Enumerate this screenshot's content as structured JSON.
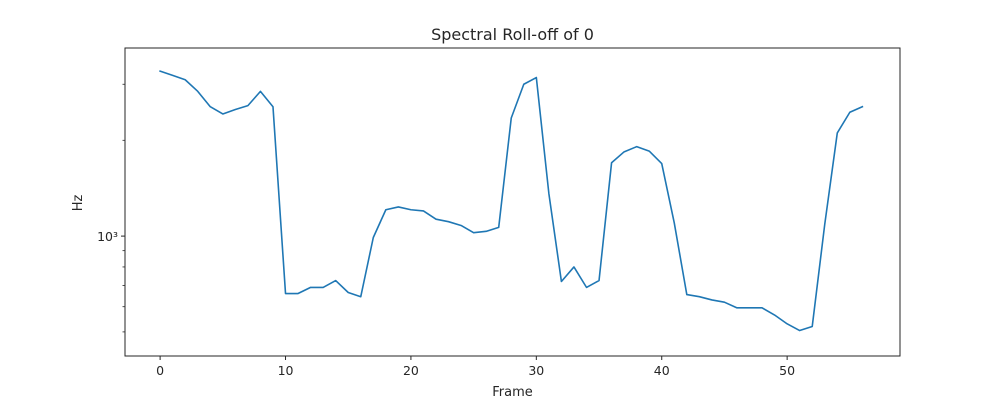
{
  "chart_data": {
    "type": "line",
    "title": "Spectral Roll-off of 0",
    "xlabel": "Frame",
    "ylabel": "Hz",
    "xlim": [
      -2.8,
      59
    ],
    "ylim": [
      420,
      3900
    ],
    "yscale": "log",
    "x_ticks": [
      0,
      10,
      20,
      30,
      40,
      50
    ],
    "x_tick_labels": [
      "0",
      "10",
      "20",
      "30",
      "40",
      "50"
    ],
    "y_major_ticks": [
      1000
    ],
    "y_major_tick_labels": [
      "10³"
    ],
    "y_minor_ticks": [
      500,
      600,
      700,
      800,
      900,
      2000,
      3000
    ],
    "grid": false,
    "series": [
      {
        "color": "#1f77b4",
        "x": [
          0,
          1,
          2,
          3,
          4,
          5,
          6,
          7,
          8,
          9,
          10,
          11,
          12,
          13,
          14,
          15,
          16,
          17,
          18,
          19,
          20,
          21,
          22,
          23,
          24,
          25,
          26,
          27,
          28,
          29,
          30,
          31,
          32,
          33,
          34,
          35,
          36,
          37,
          38,
          39,
          40,
          41,
          42,
          43,
          44,
          45,
          46,
          47,
          48,
          49,
          50,
          51,
          52,
          53,
          54,
          55,
          56
        ],
        "y": [
          3300,
          3200,
          3100,
          2850,
          2550,
          2420,
          2500,
          2570,
          2850,
          2550,
          660,
          660,
          690,
          690,
          725,
          665,
          645,
          990,
          1210,
          1235,
          1210,
          1200,
          1130,
          1110,
          1080,
          1025,
          1035,
          1065,
          2350,
          3000,
          3150,
          1360,
          720,
          800,
          690,
          725,
          1700,
          1840,
          1910,
          1850,
          1690,
          1100,
          655,
          645,
          630,
          620,
          595,
          595,
          595,
          565,
          530,
          505,
          520,
          1090,
          2110,
          2450,
          2550
        ]
      }
    ]
  }
}
